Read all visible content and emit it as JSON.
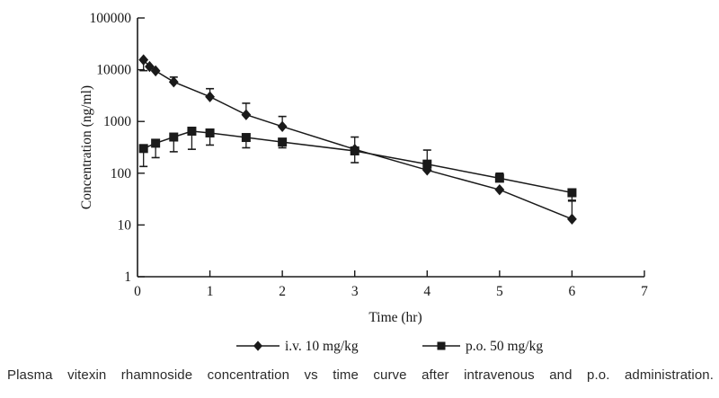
{
  "figure": {
    "caption": "Plasma vitexin rhamnoside concentration vs time curve after intravenous and p.o. administration."
  },
  "chart_data": {
    "type": "line",
    "title": "",
    "xlabel": "Time (hr)",
    "ylabel": "Concentration (ng/ml)",
    "x_axis": {
      "min": 0,
      "max": 7,
      "ticks": [
        0,
        1,
        2,
        3,
        4,
        5,
        6,
        7
      ]
    },
    "y_axis": {
      "scale": "log",
      "min": 1,
      "max": 100000,
      "ticks": [
        1,
        10,
        100,
        1000,
        10000,
        100000
      ],
      "tick_labels": [
        "1",
        "10",
        "100",
        "1000",
        "10000",
        "100000"
      ]
    },
    "grid": false,
    "legend_position": "bottom",
    "marker_color": "#1a1a1a",
    "line_color": "#1a1a1a",
    "series": [
      {
        "name": "i.v. 10 mg/kg",
        "marker": "diamond",
        "points": [
          {
            "t": 0.083,
            "c": 15500,
            "err_lo": 9600
          },
          {
            "t": 0.167,
            "c": 11500
          },
          {
            "t": 0.25,
            "c": 9500
          },
          {
            "t": 0.5,
            "c": 5800,
            "err_hi": 7200
          },
          {
            "t": 1,
            "c": 3000,
            "err_hi": 4300
          },
          {
            "t": 1.5,
            "c": 1350,
            "err_hi": 2250
          },
          {
            "t": 2,
            "c": 800,
            "err_hi": 1250
          },
          {
            "t": 3,
            "c": 290,
            "err_hi": 500,
            "err_lo": 160
          },
          {
            "t": 4,
            "c": 115
          },
          {
            "t": 5,
            "c": 48
          },
          {
            "t": 6,
            "c": 13,
            "err_hi": 30
          }
        ]
      },
      {
        "name": "p.o. 50 mg/kg",
        "marker": "square",
        "points": [
          {
            "t": 0.083,
            "c": 300,
            "err_lo": 135
          },
          {
            "t": 0.25,
            "c": 380,
            "err_lo": 200
          },
          {
            "t": 0.5,
            "c": 500,
            "err_lo": 260
          },
          {
            "t": 0.75,
            "c": 650,
            "err_lo": 290
          },
          {
            "t": 1,
            "c": 600,
            "err_lo": 350
          },
          {
            "t": 1.5,
            "c": 490,
            "err_lo": 310
          },
          {
            "t": 2,
            "c": 400,
            "err_lo": 310
          },
          {
            "t": 3,
            "c": 270
          },
          {
            "t": 4,
            "c": 150,
            "err_hi": 280
          },
          {
            "t": 5,
            "c": 80,
            "err_hi": 100
          },
          {
            "t": 6,
            "c": 42,
            "err_lo": 29
          }
        ]
      }
    ]
  }
}
